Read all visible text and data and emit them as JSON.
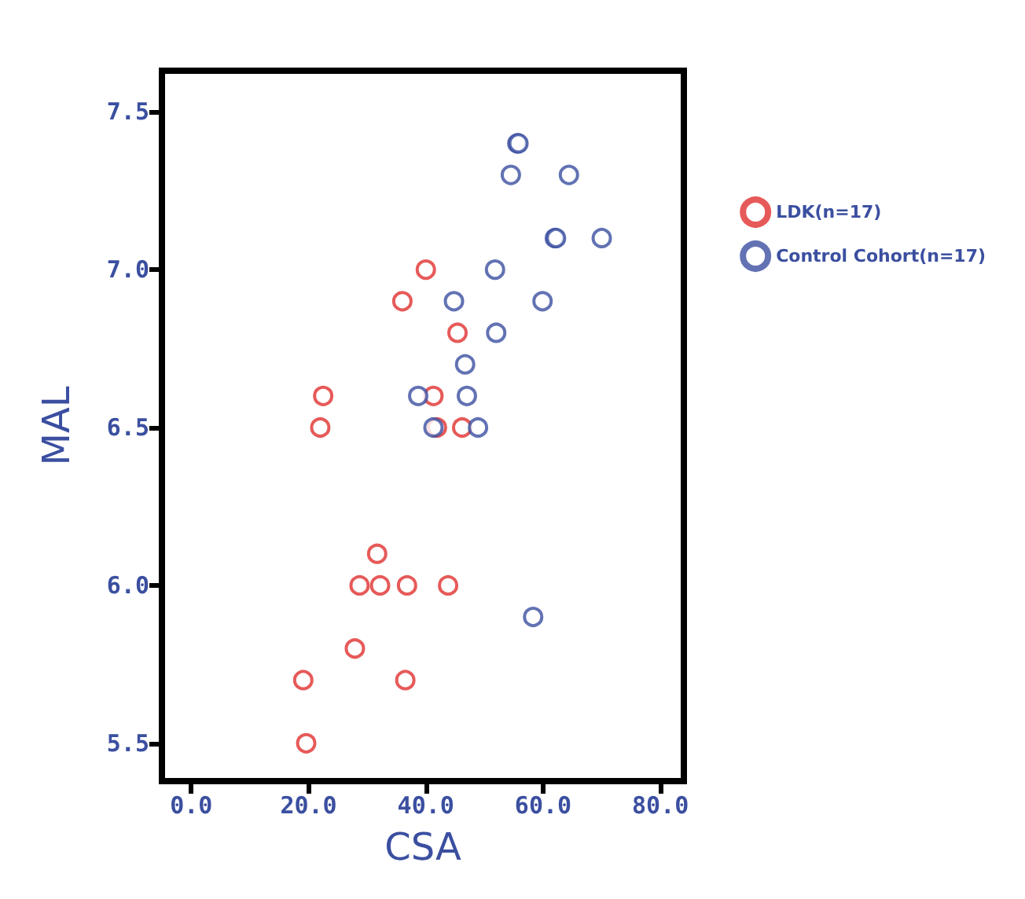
{
  "chart_data": {
    "type": "scatter",
    "xlabel": "CSA",
    "ylabel": "MAL",
    "xlim": [
      -5,
      84
    ],
    "ylim": [
      5.38,
      7.63
    ],
    "xticks": [
      {
        "value": 0,
        "label": "0.0"
      },
      {
        "value": 20,
        "label": "20.0"
      },
      {
        "value": 40,
        "label": "40.0"
      },
      {
        "value": 60,
        "label": "60.0"
      },
      {
        "value": 80,
        "label": "80.0"
      }
    ],
    "yticks": [
      {
        "value": 5.5,
        "label": "5.5"
      },
      {
        "value": 6,
        "label": "6.0"
      },
      {
        "value": 6.5,
        "label": "6.5"
      },
      {
        "value": 7,
        "label": "7.0"
      },
      {
        "value": 7.5,
        "label": "7.5"
      }
    ],
    "grid": false,
    "legend": "right",
    "marker": "circle",
    "series": [
      {
        "name": "LDK(n=17)",
        "color": "#e0312f",
        "x": [
          22.5,
          22,
          40,
          36,
          45.4,
          41.3,
          41.9,
          46.2,
          31.7,
          28.7,
          32.2,
          36.8,
          43.8,
          27.9,
          19.1,
          36.5,
          19.6
        ],
        "values": [
          6.6,
          6.5,
          7.0,
          6.9,
          6.8,
          6.6,
          6.5,
          6.5,
          6.1,
          6.0,
          6.0,
          6.0,
          6.0,
          5.8,
          5.7,
          5.7,
          5.5
        ]
      },
      {
        "name": "Control Cohort(n=17)",
        "color": "#3b4fa0",
        "x": [
          55.6,
          55.8,
          54.5,
          64.4,
          62,
          62.2,
          70,
          51.8,
          44.8,
          59.9,
          52,
          46.7,
          38.7,
          47,
          41.3,
          48.9,
          58.3
        ],
        "values": [
          7.4,
          7.4,
          7.3,
          7.3,
          7.1,
          7.1,
          7.1,
          7.0,
          6.9,
          6.9,
          6.8,
          6.7,
          6.6,
          6.6,
          6.5,
          6.5,
          5.9
        ]
      }
    ]
  }
}
